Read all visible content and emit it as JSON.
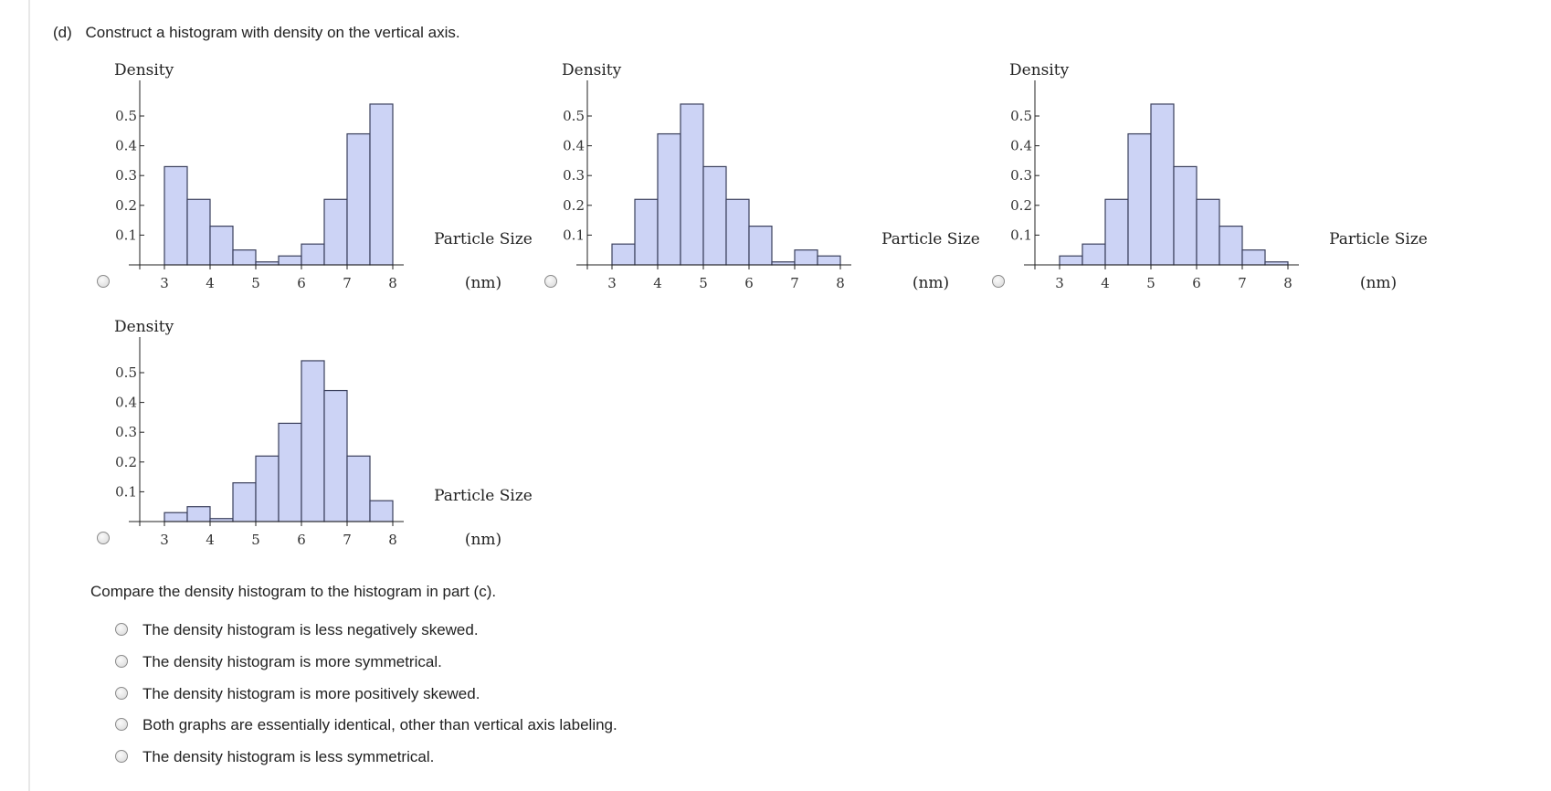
{
  "question": {
    "part": "(d)",
    "prompt": "Construct a histogram with density on the vertical axis."
  },
  "charts_common": {
    "ylabel": "Density",
    "xlabel_line1": "Particle Size",
    "xlabel_line2": "(nm)",
    "yticks": [
      "0.1",
      "0.2",
      "0.3",
      "0.4",
      "0.5"
    ],
    "xticks": [
      "3",
      "4",
      "5",
      "6",
      "7",
      "8"
    ],
    "bar_fill": "#ccd3f5",
    "bar_stroke": "#3a3f5c"
  },
  "chart_data": [
    {
      "type": "bar",
      "option": "A",
      "xlabel": "Particle Size (nm)",
      "ylabel": "Density",
      "bin_width": 0.5,
      "bin_starts": [
        3.0,
        3.5,
        4.0,
        4.5,
        5.0,
        5.5,
        6.0,
        6.5,
        7.0,
        7.5
      ],
      "values": [
        0.33,
        0.22,
        0.13,
        0.05,
        0.01,
        0.03,
        0.07,
        0.22,
        0.44,
        0.54
      ],
      "xlim": [
        2.5,
        8.5
      ],
      "ylim": [
        0,
        0.6
      ]
    },
    {
      "type": "bar",
      "option": "B",
      "xlabel": "Particle Size (nm)",
      "ylabel": "Density",
      "bin_width": 0.5,
      "bin_starts": [
        3.0,
        3.5,
        4.0,
        4.5,
        5.0,
        5.5,
        6.0,
        6.5,
        7.0,
        7.5
      ],
      "values": [
        0.07,
        0.22,
        0.44,
        0.54,
        0.33,
        0.22,
        0.13,
        0.01,
        0.05,
        0.03
      ],
      "xlim": [
        2.5,
        8.5
      ],
      "ylim": [
        0,
        0.6
      ]
    },
    {
      "type": "bar",
      "option": "C",
      "xlabel": "Particle Size (nm)",
      "ylabel": "Density",
      "bin_width": 0.5,
      "bin_starts": [
        3.0,
        3.5,
        4.0,
        4.5,
        5.0,
        5.5,
        6.0,
        6.5,
        7.0,
        7.5
      ],
      "values": [
        0.03,
        0.07,
        0.22,
        0.44,
        0.54,
        0.33,
        0.22,
        0.13,
        0.05,
        0.01
      ],
      "xlim": [
        2.5,
        8.5
      ],
      "ylim": [
        0,
        0.6
      ]
    },
    {
      "type": "bar",
      "option": "D",
      "xlabel": "Particle Size (nm)",
      "ylabel": "Density",
      "bin_width": 0.5,
      "bin_starts": [
        3.0,
        3.5,
        4.0,
        4.5,
        5.0,
        5.5,
        6.0,
        6.5,
        7.0,
        7.5
      ],
      "values": [
        0.03,
        0.05,
        0.01,
        0.13,
        0.22,
        0.33,
        0.54,
        0.44,
        0.22,
        0.07
      ],
      "xlim": [
        2.5,
        8.5
      ],
      "ylim": [
        0,
        0.6
      ]
    }
  ],
  "compare": {
    "prompt": "Compare the density histogram to the histogram in part (c).",
    "choices": [
      "The density histogram is less negatively skewed.",
      "The density histogram is more symmetrical.",
      "The density histogram is more positively skewed.",
      "Both graphs are essentially identical, other than vertical axis labeling.",
      "The density histogram is less symmetrical."
    ]
  }
}
